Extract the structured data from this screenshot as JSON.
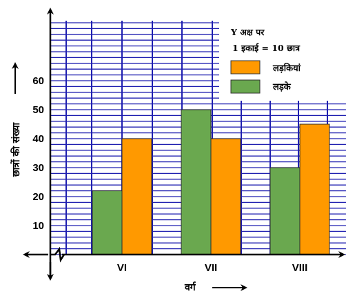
{
  "chart_data": {
    "type": "bar",
    "categories": [
      "VI",
      "VII",
      "VIII"
    ],
    "series": [
      {
        "name": "लड़के",
        "values": [
          22,
          50,
          30
        ],
        "color": "#6aa84f"
      },
      {
        "name": "लड़कियां",
        "values": [
          40,
          40,
          45
        ],
        "color": "#ff9900"
      }
    ],
    "xlabel": "वर्ग",
    "ylabel": "छात्रों की संख्या",
    "yticks": [
      10,
      20,
      30,
      40,
      50,
      60
    ],
    "ylim": [
      0,
      70
    ],
    "grid": true,
    "grid_color": "#1f1fb0",
    "legend": {
      "position": "top-right",
      "note_line1": "Y अक्ष पर",
      "note_line2": "1 इकाई = 10 छात्र",
      "entries": [
        "लड़कियां",
        "लड़के"
      ]
    }
  }
}
